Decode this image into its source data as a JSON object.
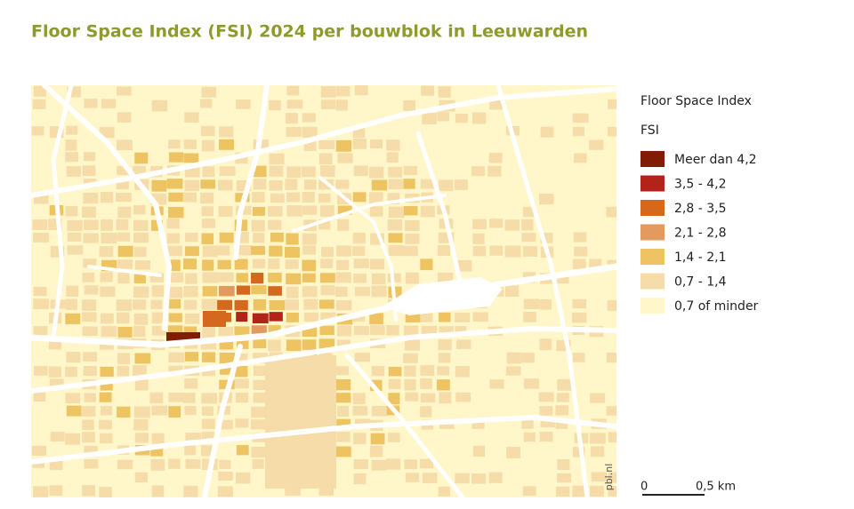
{
  "title": "Floor Space Index (FSI) 2024 per bouwblok in Leeuwarden",
  "legend": {
    "title": "Floor Space Index",
    "subtitle": "FSI",
    "items": [
      {
        "label": "Meer dan 4,2",
        "color": "#7f1d05"
      },
      {
        "label": "3,5 - 4,2",
        "color": "#b2231a"
      },
      {
        "label": "2,8 - 3,5",
        "color": "#d4681c"
      },
      {
        "label": "2,1 - 2,8",
        "color": "#e39a5e"
      },
      {
        "label": "1,4 - 2,1",
        "color": "#eec463"
      },
      {
        "label": "0,7 - 1,4",
        "color": "#f5dca8"
      },
      {
        "label": "0,7 of minder",
        "color": "#fff6c9"
      }
    ]
  },
  "scale_bar": {
    "start": "0",
    "end": "0,5 km"
  },
  "credit": "pbl.nl"
}
